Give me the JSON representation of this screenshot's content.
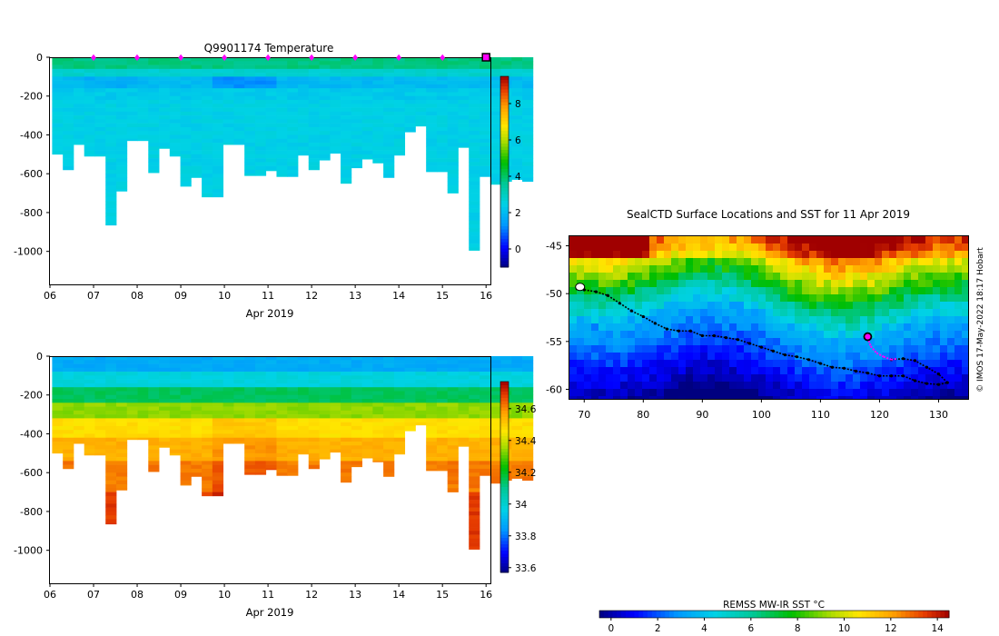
{
  "chart_data": [
    {
      "type": "heatmap",
      "title": "Q9901174  Temperature",
      "xlabel": "Apr 2019",
      "ylabel": "",
      "x_ticks": [
        "06",
        "07",
        "08",
        "09",
        "10",
        "11",
        "12",
        "13",
        "14",
        "15",
        "16"
      ],
      "y_ticks": [
        0,
        -200,
        -400,
        -600,
        -800,
        -1000
      ],
      "ylim": [
        -1170,
        0
      ],
      "xlim": [
        6,
        16.1
      ],
      "colorbar": {
        "ticks": [
          0,
          2,
          4,
          6,
          8
        ],
        "range": [
          -1,
          9.5
        ]
      },
      "surfacing_markers_day": [
        7,
        8,
        9,
        10,
        11,
        12,
        13,
        14,
        15
      ],
      "current_position_day": 16,
      "profile_start_day": 6.05,
      "profile_step_days": 0.245,
      "profile_max_depths": [
        500,
        580,
        450,
        510,
        510,
        865,
        690,
        430,
        430,
        595,
        470,
        510,
        665,
        620,
        720,
        720,
        450,
        450,
        610,
        610,
        585,
        615,
        615,
        505,
        580,
        530,
        495,
        650,
        570,
        525,
        545,
        620,
        505,
        385,
        355,
        590,
        590,
        700,
        465,
        995,
        615,
        655,
        640,
        630,
        640
      ],
      "values_note": "0-50 m ~3.8 C (green), 90-160 m ~2.0 C cold layer (deepest near Apr 10 ~1.2 C), 200-400 m ~2.4 C, below 400 m ~2.4 C"
    },
    {
      "type": "heatmap",
      "title": "",
      "xlabel": "Apr 2019",
      "ylabel": "",
      "x_ticks": [
        "06",
        "07",
        "08",
        "09",
        "10",
        "11",
        "12",
        "13",
        "14",
        "15",
        "16"
      ],
      "y_ticks": [
        0,
        -200,
        -400,
        -600,
        -800,
        -1000
      ],
      "ylim": [
        -1170,
        0
      ],
      "xlim": [
        6,
        16.1
      ],
      "colorbar": {
        "ticks": [
          "33.6",
          "33.8",
          "34",
          "34.2",
          "34.4",
          "34.6"
        ],
        "range": [
          33.57,
          34.77
        ]
      },
      "values_note": "salinity ~33.9 at surface increasing to ~34.6-34.7 below 500 m"
    },
    {
      "type": "heatmap",
      "title": "SealCTD Surface Locations and SST for 11 Apr 2019",
      "xlabel": "",
      "ylabel": "",
      "x_ticks": [
        70,
        80,
        90,
        100,
        110,
        120,
        130
      ],
      "y_ticks": [
        -45,
        -50,
        -55,
        -60
      ],
      "xlim": [
        67.5,
        135
      ],
      "ylim": [
        -61,
        -44
      ],
      "side_label": "© IMOS 17-May-2022 18:17 Hobart",
      "colorbar": {
        "title": "REMSS MW-IR SST °C",
        "ticks": [
          0,
          2,
          4,
          6,
          8,
          10,
          12,
          14
        ],
        "range": [
          -0.5,
          14.5
        ]
      },
      "track_black_lonlat": [
        [
          68.8,
          -49.5
        ],
        [
          70,
          -49.6
        ],
        [
          72,
          -49.8
        ],
        [
          74,
          -50.2
        ],
        [
          76,
          -51
        ],
        [
          78,
          -51.8
        ],
        [
          80,
          -52.4
        ],
        [
          82,
          -53.1
        ],
        [
          84,
          -53.7
        ],
        [
          86,
          -53.9
        ],
        [
          88,
          -53.9
        ],
        [
          90,
          -54.4
        ],
        [
          92,
          -54.4
        ],
        [
          94,
          -54.6
        ],
        [
          96,
          -54.8
        ],
        [
          98,
          -55.2
        ],
        [
          100,
          -55.6
        ],
        [
          102,
          -56
        ],
        [
          104,
          -56.4
        ],
        [
          106,
          -56.6
        ],
        [
          108,
          -56.9
        ],
        [
          110,
          -57.3
        ],
        [
          112,
          -57.7
        ],
        [
          114,
          -57.8
        ],
        [
          116,
          -58.1
        ],
        [
          118,
          -58.3
        ],
        [
          120,
          -58.6
        ],
        [
          122,
          -58.6
        ],
        [
          124,
          -58.6
        ],
        [
          126,
          -59.1
        ],
        [
          128,
          -59.4
        ],
        [
          130,
          -59.5
        ],
        [
          131.5,
          -59.3
        ],
        [
          130,
          -58.4
        ],
        [
          128,
          -57.7
        ],
        [
          126,
          -57
        ],
        [
          124,
          -56.8
        ],
        [
          122,
          -56.9
        ]
      ],
      "track_magenta_lonlat": [
        [
          118,
          -54.6
        ],
        [
          118.5,
          -55.5
        ],
        [
          119.5,
          -56.2
        ],
        [
          120.7,
          -56.6
        ],
        [
          122,
          -56.9
        ],
        [
          123,
          -56.8
        ]
      ],
      "current_position_lonlat": [
        118,
        -54.5
      ]
    }
  ]
}
